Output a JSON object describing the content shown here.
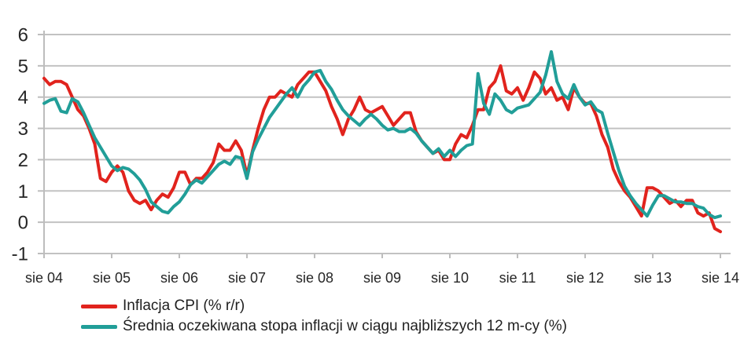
{
  "page": {
    "background": "#ffffff"
  },
  "chart_data": {
    "type": "line",
    "title": "",
    "xlabel": "",
    "ylabel": "",
    "x_description": "monthly data, Aug 2004 - Aug 2014 (121 points)",
    "x_tick_labels": [
      "sie 04",
      "sie 05",
      "sie 06",
      "sie 07",
      "sie 08",
      "sie 09",
      "sie 10",
      "sie 11",
      "sie 12",
      "sie 13",
      "sie 14"
    ],
    "points_per_tick": 12,
    "y_ticks": [
      6,
      5,
      4,
      3,
      2,
      1,
      0,
      -1
    ],
    "ylim": [
      -1,
      6
    ],
    "grid": true,
    "legend_position": "bottom-left",
    "colors": {
      "grid": "#c2c2c2",
      "axis": "#bdbdbd",
      "text": "#262626"
    },
    "series": [
      {
        "name": "Inflacja CPI (% r/r)",
        "color": "#e1231d",
        "values": [
          4.6,
          4.4,
          4.5,
          4.5,
          4.4,
          4.0,
          3.6,
          3.4,
          3.0,
          2.5,
          1.4,
          1.3,
          1.6,
          1.8,
          1.6,
          1.0,
          0.7,
          0.6,
          0.7,
          0.4,
          0.7,
          0.9,
          0.8,
          1.1,
          1.6,
          1.6,
          1.2,
          1.4,
          1.4,
          1.6,
          1.9,
          2.5,
          2.3,
          2.3,
          2.6,
          2.3,
          1.5,
          2.3,
          3.0,
          3.6,
          4.0,
          4.0,
          4.2,
          4.1,
          4.0,
          4.4,
          4.6,
          4.8,
          4.8,
          4.5,
          4.2,
          3.7,
          3.3,
          2.8,
          3.3,
          3.6,
          4.0,
          3.6,
          3.5,
          3.6,
          3.7,
          3.4,
          3.1,
          3.3,
          3.5,
          3.5,
          2.9,
          2.6,
          2.4,
          2.2,
          2.3,
          2.0,
          2.0,
          2.5,
          2.8,
          2.7,
          3.1,
          3.6,
          3.6,
          4.3,
          4.5,
          5.0,
          4.2,
          4.1,
          4.3,
          3.9,
          4.3,
          4.8,
          4.6,
          4.1,
          4.3,
          3.9,
          4.0,
          3.6,
          4.3,
          4.0,
          3.8,
          3.8,
          3.4,
          2.8,
          2.4,
          1.7,
          1.3,
          1.0,
          0.8,
          0.5,
          0.2,
          1.1,
          1.1,
          1.0,
          0.8,
          0.6,
          0.7,
          0.5,
          0.7,
          0.7,
          0.3,
          0.2,
          0.3,
          -0.2,
          -0.3
        ]
      },
      {
        "name": "Średnia oczekiwana stopa inflacji w ciągu najbliższych 12 m-cy (%)",
        "color": "#219e98",
        "values": [
          3.8,
          3.9,
          3.95,
          3.55,
          3.5,
          3.95,
          3.85,
          3.5,
          3.1,
          2.7,
          2.4,
          2.1,
          1.8,
          1.65,
          1.75,
          1.7,
          1.55,
          1.35,
          1.05,
          0.65,
          0.5,
          0.35,
          0.3,
          0.5,
          0.65,
          0.9,
          1.2,
          1.35,
          1.25,
          1.45,
          1.65,
          1.85,
          1.95,
          1.85,
          2.1,
          2.05,
          1.4,
          2.25,
          2.65,
          3.0,
          3.35,
          3.6,
          3.85,
          4.1,
          4.3,
          4.0,
          4.35,
          4.55,
          4.8,
          4.85,
          4.5,
          4.25,
          3.9,
          3.6,
          3.4,
          3.25,
          3.1,
          3.3,
          3.45,
          3.3,
          3.1,
          2.95,
          3.0,
          2.9,
          2.9,
          3.0,
          2.85,
          2.6,
          2.4,
          2.2,
          2.35,
          2.1,
          2.3,
          2.1,
          2.3,
          2.45,
          2.5,
          4.75,
          3.8,
          3.45,
          4.1,
          3.9,
          3.6,
          3.5,
          3.65,
          3.7,
          3.75,
          3.95,
          4.15,
          4.7,
          5.45,
          4.5,
          4.1,
          3.95,
          4.4,
          4.0,
          3.75,
          3.85,
          3.6,
          3.5,
          2.85,
          2.25,
          1.65,
          1.15,
          0.85,
          0.6,
          0.4,
          0.2,
          0.55,
          0.85,
          0.85,
          0.75,
          0.65,
          0.65,
          0.6,
          0.6,
          0.5,
          0.45,
          0.25,
          0.15,
          0.2
        ]
      }
    ]
  }
}
